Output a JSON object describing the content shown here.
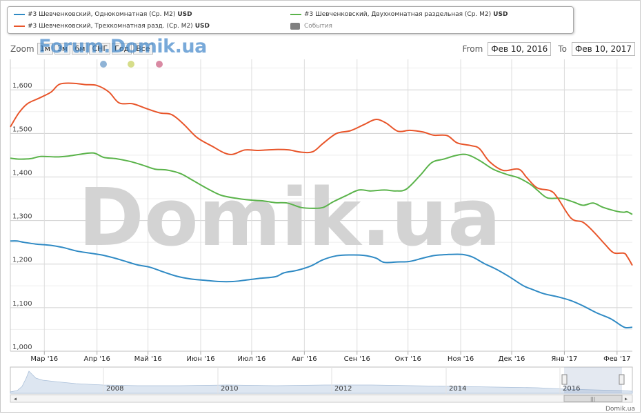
{
  "legend": {
    "items": [
      {
        "label": "#3 Шевченковский, Однокомнатная (Ср. М2)",
        "unit": "USD",
        "color": "#2f8ac4"
      },
      {
        "label": "#3 Шевченковский, Двухкомнатная раздельная (Ср. М2)",
        "unit": "USD",
        "color": "#5ab34a"
      },
      {
        "label": "#3 Шевченковский, Трехкомнатная разд. (Ср. М2)",
        "unit": "USD",
        "color": "#e8552a"
      },
      {
        "label": "События",
        "unit": "",
        "color": "#808080"
      }
    ]
  },
  "zoom": {
    "label": "Zoom",
    "buttons": [
      "1м",
      "3м",
      "6м",
      "СНГ",
      "Год",
      "Все"
    ]
  },
  "watermark_small": "Forum.Domik.ua",
  "watermark_large": "Domik.ua",
  "range": {
    "from_label": "From",
    "from_value": "Фев 10, 2016",
    "to_label": "To",
    "to_value": "Фев 10, 2017"
  },
  "event_dot_colors": [
    "#8fb3d6",
    "#d6dd8a",
    "#d98aa3"
  ],
  "navigator": {
    "year_labels": [
      "2008",
      "2010",
      "2012",
      "2014",
      "2016"
    ]
  },
  "footer": "Domik.ua",
  "chart_data": {
    "type": "line",
    "x_ticks": [
      "Мар '16",
      "Апр '16",
      "Май '16",
      "Июн '16",
      "Июл '16",
      "Авг '16",
      "Сен '16",
      "Окт '16",
      "Ноя '16",
      "Дек '16",
      "Янв '17",
      "Фев '17"
    ],
    "y_ticks": [
      "1,000",
      "1,100",
      "1,200",
      "1,300",
      "1,400",
      "1,500",
      "1,600"
    ],
    "ylim": [
      1000,
      1670
    ],
    "xlim": [
      "2016-02-10",
      "2017-02-10"
    ],
    "grid": true,
    "series": [
      {
        "name": "#3 Шевченковский, Однокомнатная (Ср. М2)",
        "color": "#2f8ac4",
        "points": [
          [
            "2016-02-10",
            1253
          ],
          [
            "2016-02-14",
            1253
          ],
          [
            "2016-02-18",
            1250
          ],
          [
            "2016-02-25",
            1246
          ],
          [
            "2016-03-05",
            1243
          ],
          [
            "2016-03-12",
            1238
          ],
          [
            "2016-03-20",
            1230
          ],
          [
            "2016-03-28",
            1225
          ],
          [
            "2016-04-05",
            1220
          ],
          [
            "2016-04-12",
            1213
          ],
          [
            "2016-04-18",
            1206
          ],
          [
            "2016-04-25",
            1198
          ],
          [
            "2016-05-02",
            1193
          ],
          [
            "2016-05-10",
            1182
          ],
          [
            "2016-05-18",
            1172
          ],
          [
            "2016-05-26",
            1166
          ],
          [
            "2016-06-03",
            1163
          ],
          [
            "2016-06-12",
            1160
          ],
          [
            "2016-06-20",
            1160
          ],
          [
            "2016-06-27",
            1163
          ],
          [
            "2016-07-05",
            1167
          ],
          [
            "2016-07-15",
            1171
          ],
          [
            "2016-07-20",
            1180
          ],
          [
            "2016-07-28",
            1186
          ],
          [
            "2016-08-05",
            1196
          ],
          [
            "2016-08-12",
            1210
          ],
          [
            "2016-08-20",
            1219
          ],
          [
            "2016-08-28",
            1221
          ],
          [
            "2016-09-05",
            1220
          ],
          [
            "2016-09-12",
            1214
          ],
          [
            "2016-09-17",
            1204
          ],
          [
            "2016-09-25",
            1205
          ],
          [
            "2016-10-02",
            1206
          ],
          [
            "2016-10-10",
            1214
          ],
          [
            "2016-10-17",
            1220
          ],
          [
            "2016-10-25",
            1222
          ],
          [
            "2016-11-02",
            1222
          ],
          [
            "2016-11-08",
            1216
          ],
          [
            "2016-11-15",
            1201
          ],
          [
            "2016-11-22",
            1188
          ],
          [
            "2016-11-30",
            1170
          ],
          [
            "2016-12-08",
            1150
          ],
          [
            "2016-12-13",
            1142
          ],
          [
            "2016-12-20",
            1132
          ],
          [
            "2016-12-28",
            1125
          ],
          [
            "2017-01-05",
            1116
          ],
          [
            "2017-01-12",
            1104
          ],
          [
            "2017-01-20",
            1088
          ],
          [
            "2017-01-28",
            1075
          ],
          [
            "2017-02-03",
            1060
          ],
          [
            "2017-02-06",
            1054
          ],
          [
            "2017-02-10",
            1055
          ]
        ]
      },
      {
        "name": "#3 Шевченковский, Двухкомнатная раздельная (Ср. М2)",
        "color": "#5ab34a",
        "points": [
          [
            "2016-02-10",
            1443
          ],
          [
            "2016-02-15",
            1441
          ],
          [
            "2016-02-22",
            1442
          ],
          [
            "2016-02-28",
            1447
          ],
          [
            "2016-03-08",
            1446
          ],
          [
            "2016-03-15",
            1448
          ],
          [
            "2016-03-22",
            1452
          ],
          [
            "2016-03-30",
            1455
          ],
          [
            "2016-04-05",
            1445
          ],
          [
            "2016-04-12",
            1442
          ],
          [
            "2016-04-20",
            1436
          ],
          [
            "2016-04-28",
            1427
          ],
          [
            "2016-05-05",
            1418
          ],
          [
            "2016-05-12",
            1416
          ],
          [
            "2016-05-20",
            1408
          ],
          [
            "2016-05-27",
            1393
          ],
          [
            "2016-06-05",
            1373
          ],
          [
            "2016-06-13",
            1358
          ],
          [
            "2016-06-22",
            1351
          ],
          [
            "2016-06-30",
            1347
          ],
          [
            "2016-07-08",
            1345
          ],
          [
            "2016-07-15",
            1341
          ],
          [
            "2016-07-22",
            1340
          ],
          [
            "2016-07-30",
            1330
          ],
          [
            "2016-08-06",
            1328
          ],
          [
            "2016-08-12",
            1330
          ],
          [
            "2016-08-18",
            1343
          ],
          [
            "2016-08-25",
            1356
          ],
          [
            "2016-09-02",
            1370
          ],
          [
            "2016-09-09",
            1368
          ],
          [
            "2016-09-17",
            1370
          ],
          [
            "2016-09-24",
            1368
          ],
          [
            "2016-09-30",
            1372
          ],
          [
            "2016-10-08",
            1403
          ],
          [
            "2016-10-15",
            1433
          ],
          [
            "2016-10-22",
            1441
          ],
          [
            "2016-10-30",
            1450
          ],
          [
            "2016-11-05",
            1451
          ],
          [
            "2016-11-12",
            1438
          ],
          [
            "2016-11-20",
            1418
          ],
          [
            "2016-11-28",
            1406
          ],
          [
            "2016-12-05",
            1398
          ],
          [
            "2016-12-12",
            1383
          ],
          [
            "2016-12-16",
            1370
          ],
          [
            "2016-12-22",
            1352
          ],
          [
            "2016-12-30",
            1351
          ],
          [
            "2017-01-06",
            1343
          ],
          [
            "2017-01-12",
            1335
          ],
          [
            "2017-01-18",
            1340
          ],
          [
            "2017-01-24",
            1330
          ],
          [
            "2017-02-01",
            1321
          ],
          [
            "2017-02-05",
            1319
          ],
          [
            "2017-02-07",
            1320
          ],
          [
            "2017-02-10",
            1314
          ]
        ]
      },
      {
        "name": "#3 Шевченковский, Трехкомнатная разд. (Ср. М2)",
        "color": "#e8552a",
        "points": [
          [
            "2016-02-10",
            1515
          ],
          [
            "2016-02-15",
            1547
          ],
          [
            "2016-02-20",
            1568
          ],
          [
            "2016-02-27",
            1581
          ],
          [
            "2016-03-05",
            1595
          ],
          [
            "2016-03-10",
            1613
          ],
          [
            "2016-03-18",
            1615
          ],
          [
            "2016-03-25",
            1612
          ],
          [
            "2016-04-01",
            1610
          ],
          [
            "2016-04-08",
            1595
          ],
          [
            "2016-04-14",
            1570
          ],
          [
            "2016-04-22",
            1568
          ],
          [
            "2016-04-30",
            1557
          ],
          [
            "2016-05-08",
            1547
          ],
          [
            "2016-05-15",
            1543
          ],
          [
            "2016-05-22",
            1521
          ],
          [
            "2016-05-30",
            1490
          ],
          [
            "2016-06-08",
            1470
          ],
          [
            "2016-06-15",
            1455
          ],
          [
            "2016-06-20",
            1452
          ],
          [
            "2016-06-27",
            1462
          ],
          [
            "2016-07-05",
            1461
          ],
          [
            "2016-07-15",
            1463
          ],
          [
            "2016-07-23",
            1462
          ],
          [
            "2016-07-30",
            1457
          ],
          [
            "2016-08-06",
            1458
          ],
          [
            "2016-08-12",
            1477
          ],
          [
            "2016-08-20",
            1500
          ],
          [
            "2016-08-28",
            1506
          ],
          [
            "2016-09-05",
            1520
          ],
          [
            "2016-09-12",
            1532
          ],
          [
            "2016-09-18",
            1524
          ],
          [
            "2016-09-25",
            1505
          ],
          [
            "2016-10-02",
            1507
          ],
          [
            "2016-10-10",
            1503
          ],
          [
            "2016-10-16",
            1496
          ],
          [
            "2016-10-24",
            1495
          ],
          [
            "2016-10-30",
            1478
          ],
          [
            "2016-11-07",
            1472
          ],
          [
            "2016-11-12",
            1465
          ],
          [
            "2016-11-18",
            1435
          ],
          [
            "2016-11-26",
            1415
          ],
          [
            "2016-12-05",
            1418
          ],
          [
            "2016-12-10",
            1398
          ],
          [
            "2016-12-16",
            1375
          ],
          [
            "2016-12-24",
            1368
          ],
          [
            "2016-12-28",
            1352
          ],
          [
            "2017-01-05",
            1305
          ],
          [
            "2017-01-12",
            1296
          ],
          [
            "2017-01-18",
            1275
          ],
          [
            "2017-01-25",
            1245
          ],
          [
            "2017-01-30",
            1226
          ],
          [
            "2017-02-05",
            1225
          ],
          [
            "2017-02-07",
            1217
          ],
          [
            "2017-02-10",
            1197
          ]
        ]
      }
    ]
  }
}
